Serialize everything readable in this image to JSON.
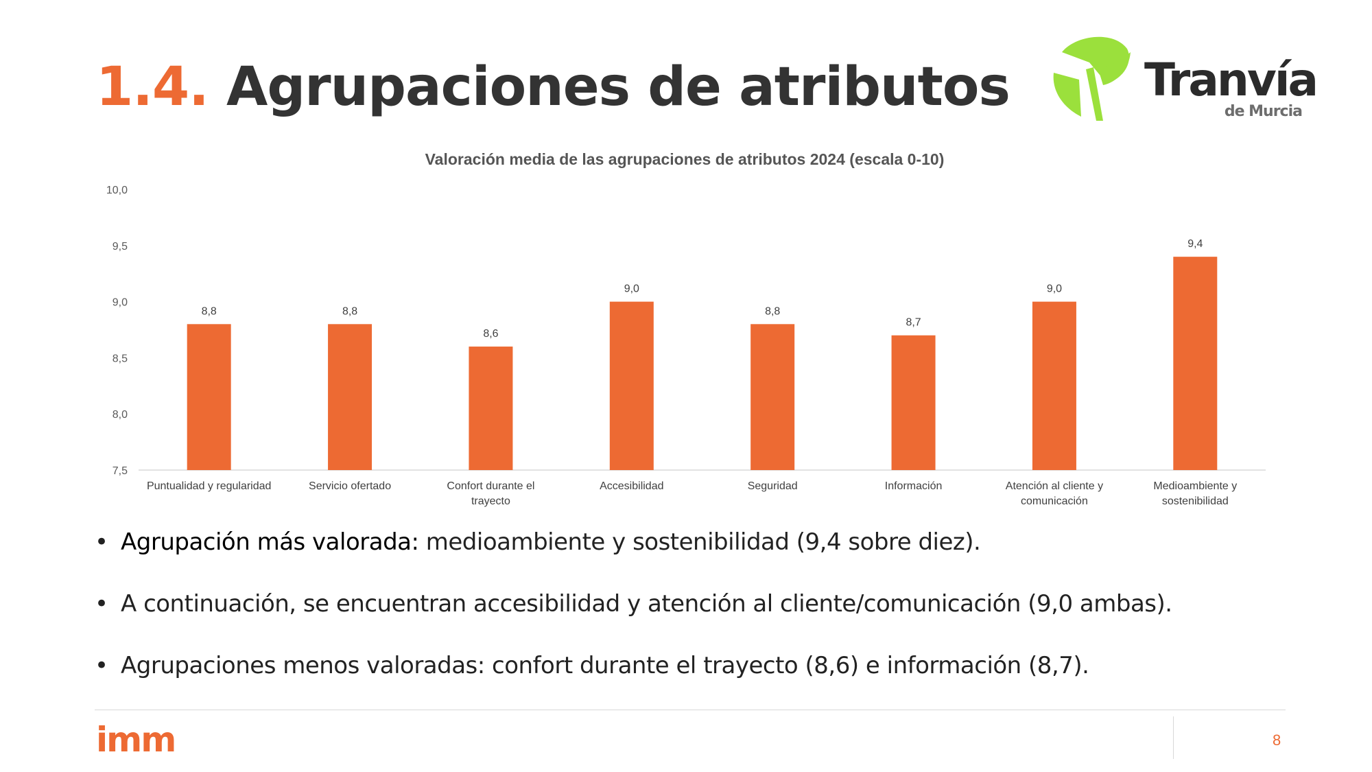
{
  "slide": {
    "title_number": "1.4.",
    "title_text": "Agrupaciones de atributos",
    "page_number": "8"
  },
  "logo": {
    "name": "Tranvía",
    "subtitle": "de Murcia",
    "colors": {
      "green": "#9BE03C",
      "text": "#2b2b2b"
    }
  },
  "footer_logo": {
    "text": "imm",
    "color": "#ED6A33"
  },
  "chart_data": {
    "type": "bar",
    "title": "Valoración media de las agrupaciones de atributos 2024 (escala 0-10)",
    "categories": [
      [
        "Puntualidad y regularidad"
      ],
      [
        "Servicio ofertado"
      ],
      [
        "Confort durante el",
        "trayecto"
      ],
      [
        "Accesibilidad"
      ],
      [
        "Seguridad"
      ],
      [
        "Información"
      ],
      [
        "Atención al cliente y",
        "comunicación"
      ],
      [
        "Medioambiente y",
        "sostenibilidad"
      ]
    ],
    "values": [
      8.8,
      8.8,
      8.6,
      9.0,
      8.8,
      8.7,
      9.0,
      9.4
    ],
    "value_labels": [
      "8,8",
      "8,8",
      "8,6",
      "9,0",
      "8,8",
      "8,7",
      "9,0",
      "9,4"
    ],
    "ylim": [
      7.5,
      10.0
    ],
    "yticks": [
      "7,5",
      "8,0",
      "8,5",
      "9,0",
      "9,5",
      "10,0"
    ],
    "grid": false,
    "bar_color": "#ED6A33"
  },
  "bullets": [
    {
      "strong": "Agrupación más valorada:",
      "text": " medioambiente y sostenibilidad (9,4 sobre diez)."
    },
    {
      "strong": "",
      "text": "A continuación, se encuentran accesibilidad y atención al cliente/comunicación (9,0 ambas)."
    },
    {
      "strong": "",
      "text": "Agrupaciones menos valoradas: confort durante el trayecto  (8,6) e información (8,7)."
    }
  ]
}
